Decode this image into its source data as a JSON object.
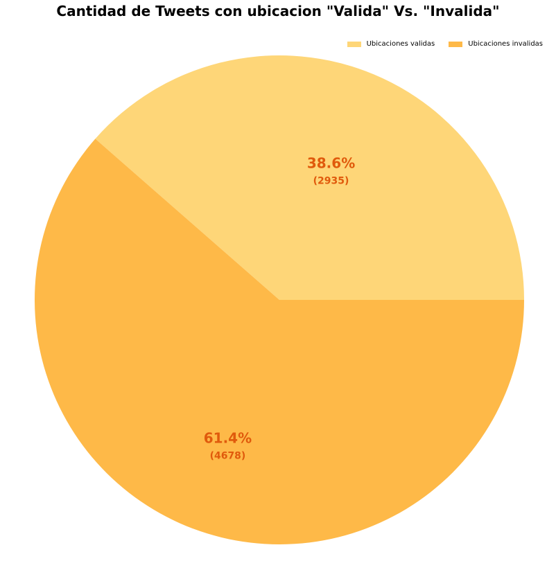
{
  "chart_data": {
    "type": "pie",
    "title": "Cantidad de Tweets con ubicacion \"Valida\" Vs. \"Invalida\"",
    "labels": [
      "Ubicaciones validas",
      "Ubicaciones invalidas"
    ],
    "values": [
      2935,
      4678
    ],
    "percent_labels": [
      "38.6%",
      "61.4%"
    ],
    "count_labels": [
      "(2935)",
      "(4678)"
    ],
    "colors": [
      "#fed678",
      "#feb948"
    ],
    "label_color": "#e05a0c",
    "legend_position": "top-right",
    "start_angle_deg": 0,
    "direction": "counterclockwise"
  }
}
